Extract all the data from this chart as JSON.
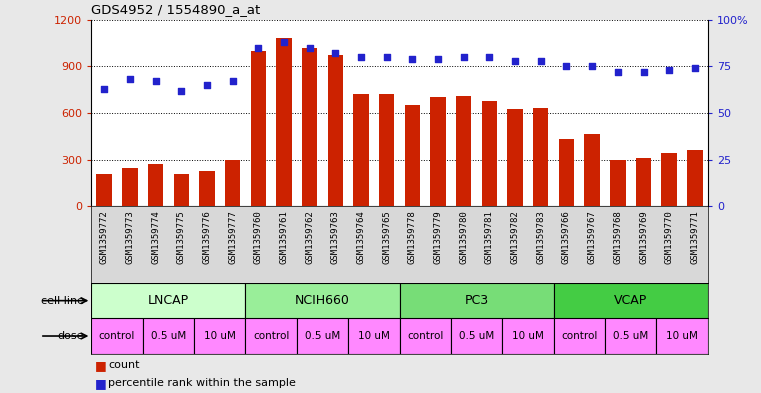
{
  "title": "GDS4952 / 1554890_a_at",
  "samples": [
    "GSM1359772",
    "GSM1359773",
    "GSM1359774",
    "GSM1359775",
    "GSM1359776",
    "GSM1359777",
    "GSM1359760",
    "GSM1359761",
    "GSM1359762",
    "GSM1359763",
    "GSM1359764",
    "GSM1359765",
    "GSM1359778",
    "GSM1359779",
    "GSM1359780",
    "GSM1359781",
    "GSM1359782",
    "GSM1359783",
    "GSM1359766",
    "GSM1359767",
    "GSM1359768",
    "GSM1359769",
    "GSM1359770",
    "GSM1359771"
  ],
  "counts": [
    210,
    245,
    270,
    210,
    230,
    295,
    1000,
    1080,
    1020,
    970,
    720,
    720,
    650,
    700,
    710,
    680,
    625,
    635,
    430,
    465,
    295,
    310,
    340,
    360
  ],
  "percentile_ranks": [
    63,
    68,
    67,
    62,
    65,
    67,
    85,
    88,
    85,
    82,
    80,
    80,
    79,
    79,
    80,
    80,
    78,
    78,
    75,
    75,
    72,
    72,
    73,
    74
  ],
  "cell_lines": [
    {
      "name": "LNCAP",
      "start": 0,
      "end": 6,
      "color": "#ccffcc"
    },
    {
      "name": "NCIH660",
      "start": 6,
      "end": 12,
      "color": "#99ee99"
    },
    {
      "name": "PC3",
      "start": 12,
      "end": 18,
      "color": "#77dd77"
    },
    {
      "name": "VCAP",
      "start": 18,
      "end": 24,
      "color": "#44cc44"
    }
  ],
  "dose_segments": [
    {
      "label": "control",
      "start": 0,
      "end": 2,
      "color": "#ff88ff"
    },
    {
      "label": "0.5 uM",
      "start": 2,
      "end": 4,
      "color": "#ff88ff"
    },
    {
      "label": "10 uM",
      "start": 4,
      "end": 6,
      "color": "#ff88ff"
    },
    {
      "label": "control",
      "start": 6,
      "end": 8,
      "color": "#ff88ff"
    },
    {
      "label": "0.5 uM",
      "start": 8,
      "end": 10,
      "color": "#ff88ff"
    },
    {
      "label": "10 uM",
      "start": 10,
      "end": 12,
      "color": "#ff88ff"
    },
    {
      "label": "control",
      "start": 12,
      "end": 14,
      "color": "#ff88ff"
    },
    {
      "label": "0.5 uM",
      "start": 14,
      "end": 16,
      "color": "#ff88ff"
    },
    {
      "label": "10 uM",
      "start": 16,
      "end": 18,
      "color": "#ff88ff"
    },
    {
      "label": "control",
      "start": 18,
      "end": 20,
      "color": "#ff88ff"
    },
    {
      "label": "0.5 uM",
      "start": 20,
      "end": 22,
      "color": "#ff88ff"
    },
    {
      "label": "10 uM",
      "start": 22,
      "end": 24,
      "color": "#ff88ff"
    }
  ],
  "bar_color": "#cc2200",
  "dot_color": "#2222cc",
  "left_ylim": [
    0,
    1200
  ],
  "right_ylim": [
    0,
    100
  ],
  "left_yticks": [
    0,
    300,
    600,
    900,
    1200
  ],
  "right_yticks": [
    0,
    25,
    50,
    75,
    100
  ],
  "bg_color": "#e8e8e8",
  "plot_bg": "#ffffff",
  "legend_count_color": "#cc2200",
  "legend_pct_color": "#2222cc"
}
